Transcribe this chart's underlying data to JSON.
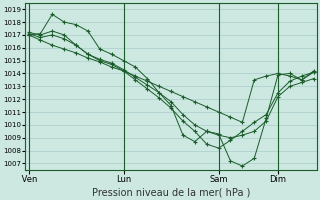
{
  "xlabel": "Pression niveau de la mer( hPa )",
  "bg_color": "#cce8e0",
  "grid_color": "#aacccc",
  "line_color": "#1a5c2a",
  "ylim": [
    1006.5,
    1019.5
  ],
  "yticks": [
    1007,
    1008,
    1009,
    1010,
    1011,
    1012,
    1013,
    1014,
    1015,
    1016,
    1017,
    1018,
    1019
  ],
  "xtick_labels": [
    " Ven",
    "Lun",
    "Sam",
    "Dim"
  ],
  "xtick_positions": [
    0,
    8,
    16,
    21
  ],
  "vline_positions": [
    0,
    8,
    16,
    21
  ],
  "n_points": 25,
  "lines": [
    [
      1017.0,
      1017.1,
      1018.6,
      1018.0,
      1017.8,
      1017.3,
      1015.9,
      1015.5,
      1015.0,
      1014.5,
      1013.6,
      1012.5,
      1011.5,
      1009.2,
      1008.7,
      1009.5,
      1009.3,
      1007.2,
      1006.8,
      1007.4,
      1010.5,
      1013.9,
      1014.0,
      1013.5,
      1014.1
    ],
    [
      1017.2,
      1017.0,
      1017.3,
      1017.0,
      1016.2,
      1015.5,
      1015.1,
      1014.8,
      1014.3,
      1013.7,
      1013.1,
      1012.5,
      1011.8,
      1010.8,
      1010.0,
      1009.5,
      1009.2,
      1009.0,
      1009.2,
      1009.5,
      1010.3,
      1012.2,
      1013.0,
      1013.3,
      1013.6
    ],
    [
      1017.1,
      1016.8,
      1017.0,
      1016.7,
      1016.2,
      1015.5,
      1015.0,
      1014.7,
      1014.2,
      1013.5,
      1012.8,
      1012.1,
      1011.3,
      1010.3,
      1009.5,
      1008.5,
      1008.2,
      1008.8,
      1009.5,
      1010.2,
      1010.8,
      1012.5,
      1013.4,
      1013.8,
      1014.1
    ],
    [
      1017.0,
      1016.6,
      1016.2,
      1015.9,
      1015.6,
      1015.2,
      1014.9,
      1014.5,
      1014.2,
      1013.8,
      1013.4,
      1013.0,
      1012.6,
      1012.2,
      1011.8,
      1011.4,
      1011.0,
      1010.6,
      1010.2,
      1013.5,
      1013.8,
      1014.0,
      1013.8,
      1013.5,
      1014.2
    ]
  ]
}
